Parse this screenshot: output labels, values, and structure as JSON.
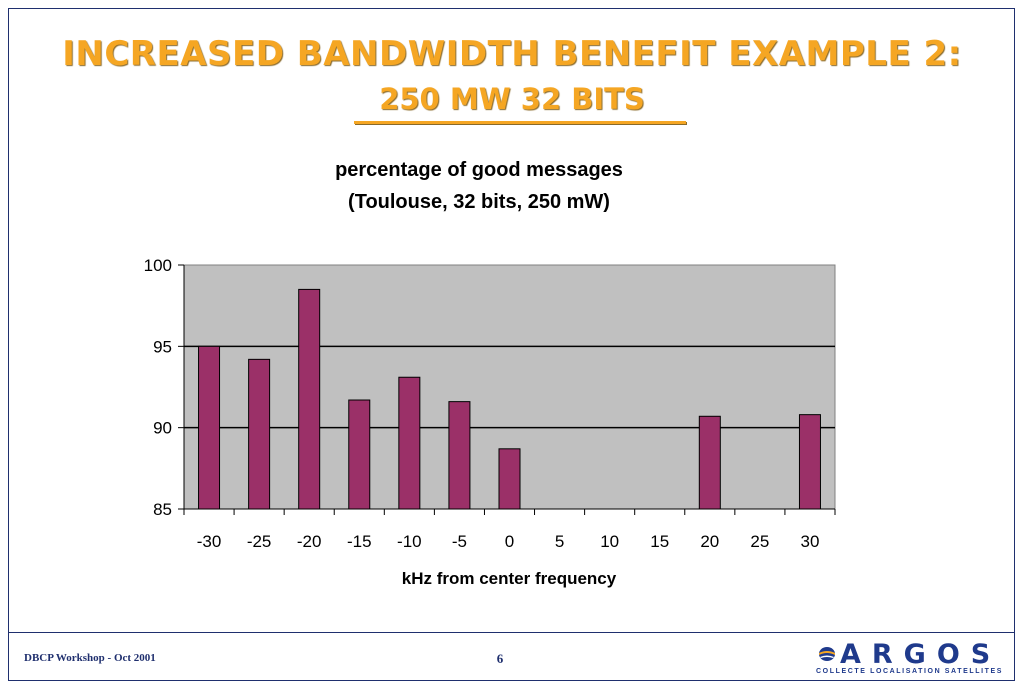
{
  "slide": {
    "title": "INCREASED BANDWIDTH BENEFIT EXAMPLE 2:",
    "subtitle": "250 MW 32 BITS",
    "footer_left": "DBCP Workshop - Oct 2001",
    "page_number": "6",
    "logo_word": "ARGOS",
    "logo_tagline": "COLLECTE LOCALISATION SATELLITES"
  },
  "colors": {
    "title": "#f5a623",
    "bar": "#9b3068",
    "plot_bg": "#c0c0c0",
    "frame": "#1f2f6e"
  },
  "chart_data": {
    "type": "bar",
    "title_line1": "percentage of good messages",
    "title_line2": "(Toulouse, 32 bits, 250 mW)",
    "xlabel": "kHz from center frequency",
    "ylabel": "",
    "categories": [
      "-30",
      "-25",
      "-20",
      "-15",
      "-10",
      "-5",
      "0",
      "5",
      "10",
      "15",
      "20",
      "25",
      "30"
    ],
    "values": [
      95.0,
      94.2,
      98.5,
      91.7,
      93.1,
      91.6,
      88.7,
      null,
      null,
      null,
      90.7,
      null,
      90.8
    ],
    "ylim": [
      85,
      100
    ],
    "yticks": [
      85,
      90,
      95,
      100
    ],
    "grid": true,
    "legend": "none"
  }
}
